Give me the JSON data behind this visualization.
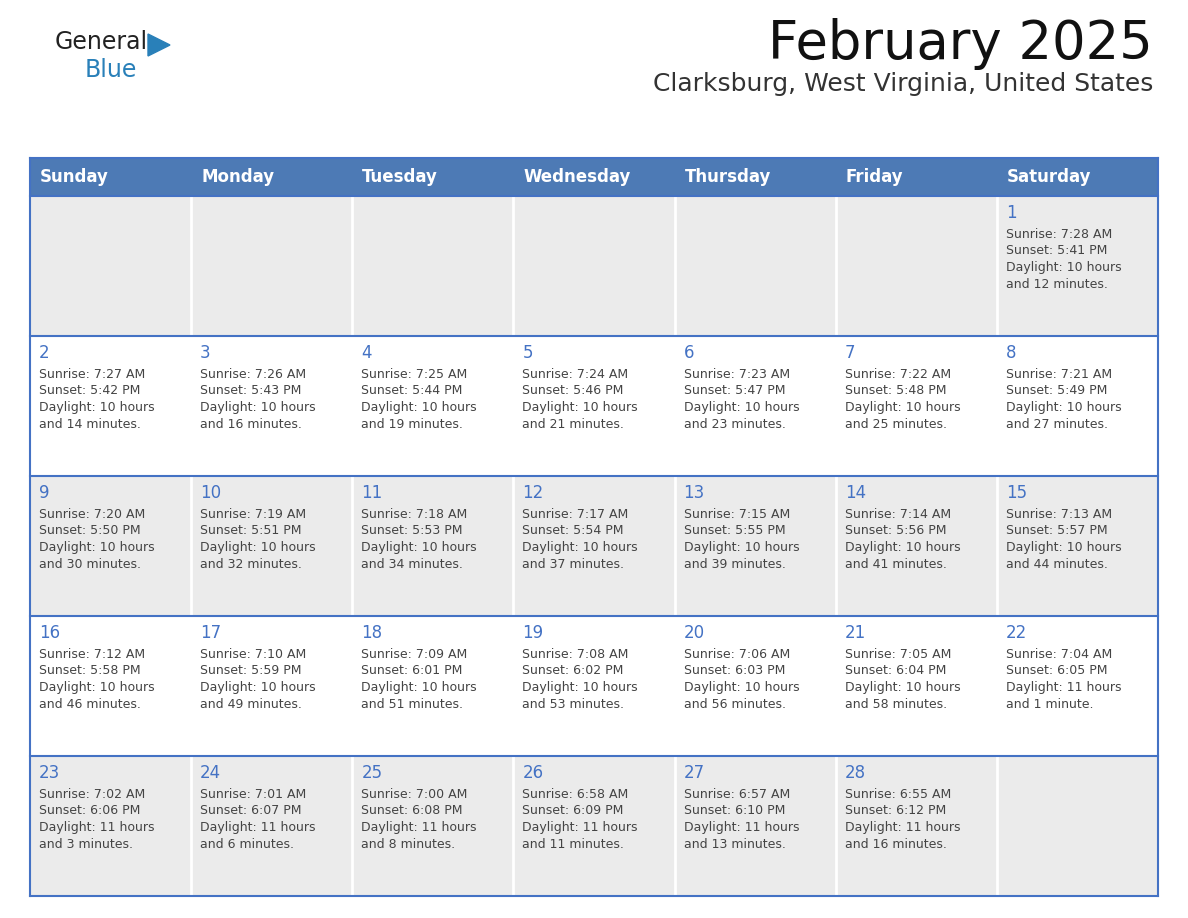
{
  "title": "February 2025",
  "subtitle": "Clarksburg, West Virginia, United States",
  "header_bg": "#4d7ab5",
  "header_text_color": "#FFFFFF",
  "cell_bg_odd": "#ebebeb",
  "cell_bg_even": "#FFFFFF",
  "border_color": "#4472C4",
  "day_num_color": "#4472C4",
  "info_text_color": "#444444",
  "days_of_week": [
    "Sunday",
    "Monday",
    "Tuesday",
    "Wednesday",
    "Thursday",
    "Friday",
    "Saturday"
  ],
  "weeks": [
    [
      {
        "day": "",
        "info": ""
      },
      {
        "day": "",
        "info": ""
      },
      {
        "day": "",
        "info": ""
      },
      {
        "day": "",
        "info": ""
      },
      {
        "day": "",
        "info": ""
      },
      {
        "day": "",
        "info": ""
      },
      {
        "day": "1",
        "info": "Sunrise: 7:28 AM\nSunset: 5:41 PM\nDaylight: 10 hours\nand 12 minutes."
      }
    ],
    [
      {
        "day": "2",
        "info": "Sunrise: 7:27 AM\nSunset: 5:42 PM\nDaylight: 10 hours\nand 14 minutes."
      },
      {
        "day": "3",
        "info": "Sunrise: 7:26 AM\nSunset: 5:43 PM\nDaylight: 10 hours\nand 16 minutes."
      },
      {
        "day": "4",
        "info": "Sunrise: 7:25 AM\nSunset: 5:44 PM\nDaylight: 10 hours\nand 19 minutes."
      },
      {
        "day": "5",
        "info": "Sunrise: 7:24 AM\nSunset: 5:46 PM\nDaylight: 10 hours\nand 21 minutes."
      },
      {
        "day": "6",
        "info": "Sunrise: 7:23 AM\nSunset: 5:47 PM\nDaylight: 10 hours\nand 23 minutes."
      },
      {
        "day": "7",
        "info": "Sunrise: 7:22 AM\nSunset: 5:48 PM\nDaylight: 10 hours\nand 25 minutes."
      },
      {
        "day": "8",
        "info": "Sunrise: 7:21 AM\nSunset: 5:49 PM\nDaylight: 10 hours\nand 27 minutes."
      }
    ],
    [
      {
        "day": "9",
        "info": "Sunrise: 7:20 AM\nSunset: 5:50 PM\nDaylight: 10 hours\nand 30 minutes."
      },
      {
        "day": "10",
        "info": "Sunrise: 7:19 AM\nSunset: 5:51 PM\nDaylight: 10 hours\nand 32 minutes."
      },
      {
        "day": "11",
        "info": "Sunrise: 7:18 AM\nSunset: 5:53 PM\nDaylight: 10 hours\nand 34 minutes."
      },
      {
        "day": "12",
        "info": "Sunrise: 7:17 AM\nSunset: 5:54 PM\nDaylight: 10 hours\nand 37 minutes."
      },
      {
        "day": "13",
        "info": "Sunrise: 7:15 AM\nSunset: 5:55 PM\nDaylight: 10 hours\nand 39 minutes."
      },
      {
        "day": "14",
        "info": "Sunrise: 7:14 AM\nSunset: 5:56 PM\nDaylight: 10 hours\nand 41 minutes."
      },
      {
        "day": "15",
        "info": "Sunrise: 7:13 AM\nSunset: 5:57 PM\nDaylight: 10 hours\nand 44 minutes."
      }
    ],
    [
      {
        "day": "16",
        "info": "Sunrise: 7:12 AM\nSunset: 5:58 PM\nDaylight: 10 hours\nand 46 minutes."
      },
      {
        "day": "17",
        "info": "Sunrise: 7:10 AM\nSunset: 5:59 PM\nDaylight: 10 hours\nand 49 minutes."
      },
      {
        "day": "18",
        "info": "Sunrise: 7:09 AM\nSunset: 6:01 PM\nDaylight: 10 hours\nand 51 minutes."
      },
      {
        "day": "19",
        "info": "Sunrise: 7:08 AM\nSunset: 6:02 PM\nDaylight: 10 hours\nand 53 minutes."
      },
      {
        "day": "20",
        "info": "Sunrise: 7:06 AM\nSunset: 6:03 PM\nDaylight: 10 hours\nand 56 minutes."
      },
      {
        "day": "21",
        "info": "Sunrise: 7:05 AM\nSunset: 6:04 PM\nDaylight: 10 hours\nand 58 minutes."
      },
      {
        "day": "22",
        "info": "Sunrise: 7:04 AM\nSunset: 6:05 PM\nDaylight: 11 hours\nand 1 minute."
      }
    ],
    [
      {
        "day": "23",
        "info": "Sunrise: 7:02 AM\nSunset: 6:06 PM\nDaylight: 11 hours\nand 3 minutes."
      },
      {
        "day": "24",
        "info": "Sunrise: 7:01 AM\nSunset: 6:07 PM\nDaylight: 11 hours\nand 6 minutes."
      },
      {
        "day": "25",
        "info": "Sunrise: 7:00 AM\nSunset: 6:08 PM\nDaylight: 11 hours\nand 8 minutes."
      },
      {
        "day": "26",
        "info": "Sunrise: 6:58 AM\nSunset: 6:09 PM\nDaylight: 11 hours\nand 11 minutes."
      },
      {
        "day": "27",
        "info": "Sunrise: 6:57 AM\nSunset: 6:10 PM\nDaylight: 11 hours\nand 13 minutes."
      },
      {
        "day": "28",
        "info": "Sunrise: 6:55 AM\nSunset: 6:12 PM\nDaylight: 11 hours\nand 16 minutes."
      },
      {
        "day": "",
        "info": ""
      }
    ]
  ]
}
